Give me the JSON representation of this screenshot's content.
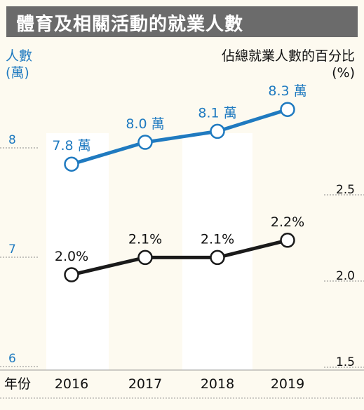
{
  "title": "體育及相關活動的就業人數",
  "chart_data": {
    "type": "line",
    "categories": [
      "2016",
      "2017",
      "2018",
      "2019"
    ],
    "xlabel": "年份",
    "ylabel_left": [
      "人數",
      "(萬)"
    ],
    "ylabel_right": [
      "佔總就業人數的百分比",
      "(%)"
    ],
    "ylim_left": [
      6,
      9
    ],
    "ylim_right": [
      1.5,
      2.75
    ],
    "yticks_left": [
      "8",
      "7",
      "6"
    ],
    "yticks_right": [
      "2.5",
      "2.0",
      "1.5"
    ],
    "series": [
      {
        "axis": "left",
        "color": "#1f7ac0",
        "values": [
          7.8,
          8.0,
          8.1,
          8.3
        ],
        "labels": [
          "7.8 萬",
          "8.0 萬",
          "8.1 萬",
          "8.3 萬"
        ]
      },
      {
        "axis": "right",
        "color": "#1a1a1a",
        "values": [
          2.0,
          2.1,
          2.1,
          2.2
        ],
        "labels": [
          "2.0%",
          "2.1%",
          "2.1%",
          "2.2%"
        ]
      }
    ],
    "grid": false,
    "legend": "none"
  }
}
